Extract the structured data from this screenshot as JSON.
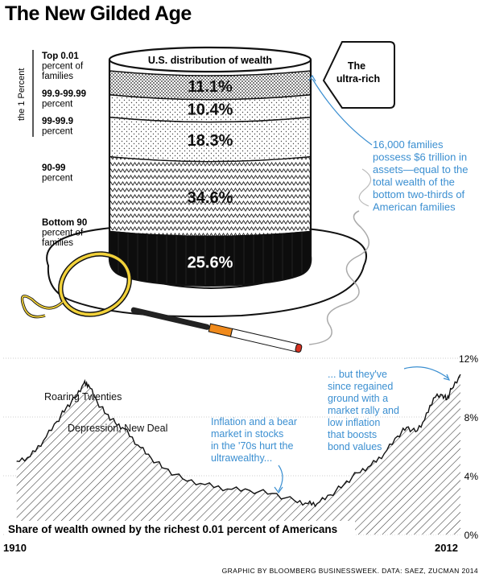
{
  "title": "The New Gilded Age",
  "hat": {
    "header": "U.S. distribution of wealth",
    "bracket_label": "the 1 Percent",
    "tag_label_line1": "The",
    "tag_label_line2": "ultra-rich",
    "callout_lines": [
      "16,000 families",
      "possess $6 trillion in",
      "assets—equal to the",
      "total wealth of the",
      "bottom two-thirds of",
      "American families"
    ]
  },
  "chart_data": [
    {
      "type": "bar",
      "title": "U.S. distribution of wealth",
      "categories": [
        "Top 0.01 percent of families",
        "99.9-99.99 percent",
        "99-99.9 percent",
        "90-99 percent",
        "Bottom 90 percent of families"
      ],
      "label_lines": [
        [
          "Top 0.01",
          "percent of",
          "families"
        ],
        [
          "99.9-99.99",
          "percent"
        ],
        [
          "99-99.9",
          "percent"
        ],
        [
          "90-99",
          "percent"
        ],
        [
          "Bottom 90",
          "percent of",
          "families"
        ]
      ],
      "values": [
        11.1,
        10.4,
        18.3,
        34.6,
        25.6
      ],
      "value_labels": [
        "11.1%",
        "10.4%",
        "18.3%",
        "34.6%",
        "25.6%"
      ],
      "unit": "%"
    },
    {
      "type": "area",
      "title": "Share of wealth owned by the richest 0.01 percent of Americans",
      "x_start_label": "1910",
      "x_end_label": "2012",
      "xlim": [
        1910,
        2012
      ],
      "ylim": [
        0,
        12
      ],
      "yticks": [
        0,
        4,
        8,
        12
      ],
      "ytick_labels": [
        "0%",
        "4%",
        "8%",
        "12%"
      ],
      "x": [
        1913,
        1916,
        1919,
        1922,
        1924,
        1926,
        1928,
        1929,
        1931,
        1933,
        1935,
        1937,
        1940,
        1943,
        1946,
        1950,
        1955,
        1960,
        1965,
        1970,
        1975,
        1978,
        1980,
        1983,
        1986,
        1989,
        1992,
        1995,
        1998,
        2000,
        2002,
        2004,
        2006,
        2008,
        2009,
        2010,
        2012
      ],
      "y": [
        5.0,
        5.3,
        6.4,
        7.7,
        8.6,
        9.3,
        10.3,
        10.2,
        9.0,
        8.2,
        7.6,
        7.2,
        6.1,
        5.2,
        4.5,
        3.8,
        3.4,
        3.1,
        3.0,
        2.8,
        2.3,
        2.1,
        2.1,
        2.7,
        3.4,
        4.2,
        4.7,
        5.5,
        6.7,
        7.3,
        7.0,
        7.8,
        9.3,
        9.5,
        9.2,
        9.9,
        10.9
      ],
      "annotations": [
        {
          "lines": [
            "Roaring Twenties"
          ]
        },
        {
          "lines": [
            "Depression, New Deal"
          ]
        },
        {
          "lines": [
            "Inflation and a bear",
            "market in stocks",
            "in the '70s hurt the",
            "ultrawealthy..."
          ]
        },
        {
          "lines": [
            "... but they've",
            "since regained",
            "ground with a",
            "market rally and",
            "low inflation",
            "that boosts",
            "bond values"
          ]
        }
      ]
    }
  ],
  "footer": {
    "credit": "GRAPHIC BY BLOOMBERG BUSINESSWEEK. DATA: SAEZ, ZUCMAN 2014"
  },
  "colors": {
    "accent_blue": "#3b8fd1",
    "brim_fill": "#ffffff",
    "band_black": "#0d0d0d",
    "cigarette_filter": "#f08a1c",
    "ember": "#d63222",
    "monocle_gold": "#f2d23a"
  }
}
